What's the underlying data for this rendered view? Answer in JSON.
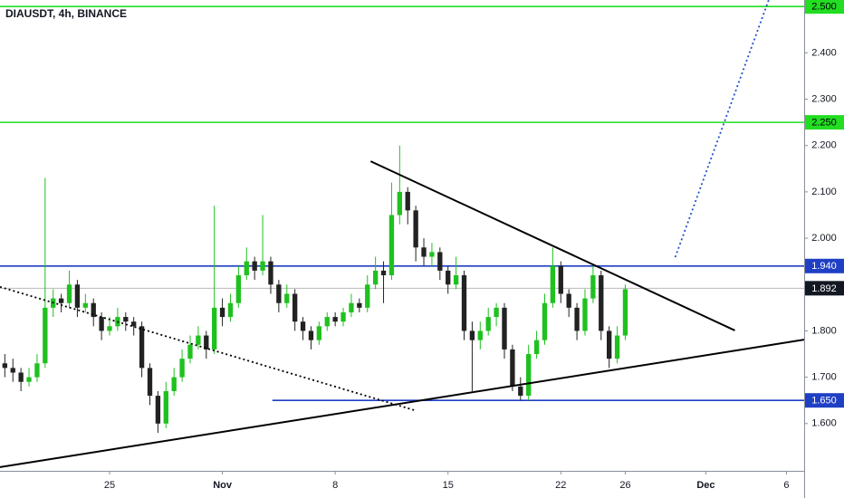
{
  "chart_data": {
    "type": "candlestick",
    "title": "DIAUSDT, 4h, BINANCE",
    "up_color": "#1fc11f",
    "down_color": "#222222",
    "xlim": [
      18.2,
      68.1
    ],
    "ylim": [
      1.498,
      2.514
    ],
    "xticks": [
      25,
      {
        "value": 32,
        "label": "Nov"
      },
      8,
      15,
      22,
      26,
      {
        "value": 62,
        "label": "Dec"
      },
      6
    ],
    "xtick_values": [
      25,
      32,
      39,
      46,
      53,
      57,
      62,
      67
    ],
    "yticks": [
      {
        "value": 1.6,
        "label": "1.600"
      },
      {
        "value": 1.7,
        "label": "1.700"
      },
      {
        "value": 1.8,
        "label": "1.800"
      },
      {
        "value": 2.0,
        "label": "2.000"
      },
      {
        "value": 2.1,
        "label": "2.100"
      },
      {
        "value": 2.2,
        "label": "2.200"
      },
      {
        "value": 2.3,
        "label": "2.300"
      },
      {
        "value": 2.4,
        "label": "2.400"
      }
    ],
    "x": [
      18.5,
      19,
      19.5,
      20,
      20.5,
      21,
      21.5,
      22,
      22.5,
      23,
      23.5,
      24,
      24.5,
      25,
      25.5,
      26,
      26.5,
      27,
      27.5,
      28,
      28.5,
      29,
      29.5,
      30,
      30.5,
      31,
      31.5,
      32,
      32.5,
      33,
      33.5,
      34,
      34.5,
      35,
      35.5,
      36,
      36.5,
      37,
      37.5,
      38,
      38.5,
      39,
      39.5,
      40,
      40.5,
      41,
      41.5,
      42,
      42.5,
      43,
      43.5,
      44,
      44.5,
      45,
      45.5,
      46,
      46.5,
      47,
      47.5,
      48,
      48.5,
      49,
      49.5,
      50,
      50.5,
      51,
      51.5,
      52,
      52.5,
      53,
      53.5,
      54,
      54.5,
      55,
      55.5,
      56,
      56.5,
      57
    ],
    "open": [
      1.73,
      1.72,
      1.71,
      1.69,
      1.7,
      1.73,
      1.85,
      1.87,
      1.86,
      1.9,
      1.85,
      1.86,
      1.83,
      1.8,
      1.81,
      1.83,
      1.82,
      1.81,
      1.72,
      1.66,
      1.6,
      1.67,
      1.7,
      1.74,
      1.77,
      1.79,
      1.76,
      1.85,
      1.83,
      1.86,
      1.92,
      1.95,
      1.93,
      1.95,
      1.9,
      1.86,
      1.88,
      1.82,
      1.8,
      1.78,
      1.81,
      1.83,
      1.82,
      1.84,
      1.86,
      1.85,
      1.9,
      1.93,
      1.92,
      2.05,
      2.1,
      2.06,
      1.98,
      1.96,
      1.97,
      1.93,
      1.9,
      1.92,
      1.8,
      1.78,
      1.8,
      1.83,
      1.85,
      1.76,
      1.68,
      1.66,
      1.75,
      1.78,
      1.86,
      1.94,
      1.88,
      1.85,
      1.8,
      1.87,
      1.92,
      1.8,
      1.74,
      1.79
    ],
    "high": [
      1.75,
      1.74,
      1.72,
      1.72,
      1.75,
      2.13,
      1.89,
      1.88,
      1.93,
      1.91,
      1.88,
      1.87,
      1.84,
      1.83,
      1.85,
      1.84,
      1.83,
      1.82,
      1.73,
      1.67,
      1.69,
      1.72,
      1.76,
      1.79,
      1.81,
      1.8,
      2.07,
      1.87,
      1.88,
      1.94,
      1.98,
      1.96,
      2.05,
      1.96,
      1.91,
      1.9,
      1.89,
      1.83,
      1.81,
      1.82,
      1.84,
      1.84,
      1.85,
      1.88,
      1.87,
      1.92,
      1.96,
      1.95,
      2.12,
      2.2,
      2.11,
      2.07,
      2.0,
      1.99,
      1.98,
      1.94,
      1.96,
      1.93,
      1.82,
      1.82,
      1.85,
      1.86,
      1.86,
      1.77,
      1.7,
      1.77,
      1.8,
      1.88,
      1.98,
      1.95,
      1.89,
      1.86,
      1.89,
      1.94,
      1.93,
      1.81,
      1.81,
      1.9
    ],
    "low": [
      1.7,
      1.69,
      1.67,
      1.68,
      1.69,
      1.72,
      1.83,
      1.84,
      1.85,
      1.83,
      1.84,
      1.81,
      1.78,
      1.79,
      1.8,
      1.8,
      1.79,
      1.7,
      1.64,
      1.58,
      1.59,
      1.66,
      1.69,
      1.73,
      1.76,
      1.74,
      1.75,
      1.81,
      1.82,
      1.85,
      1.91,
      1.91,
      1.92,
      1.88,
      1.84,
      1.85,
      1.8,
      1.78,
      1.76,
      1.77,
      1.8,
      1.81,
      1.81,
      1.83,
      1.84,
      1.84,
      1.89,
      1.86,
      1.91,
      2.03,
      2.03,
      1.95,
      1.94,
      1.94,
      1.91,
      1.88,
      1.89,
      1.78,
      1.67,
      1.76,
      1.79,
      1.81,
      1.74,
      1.67,
      1.65,
      1.65,
      1.74,
      1.77,
      1.85,
      1.86,
      1.83,
      1.78,
      1.79,
      1.86,
      1.78,
      1.72,
      1.73,
      1.78
    ],
    "close": [
      1.72,
      1.71,
      1.69,
      1.7,
      1.73,
      1.85,
      1.87,
      1.86,
      1.9,
      1.85,
      1.86,
      1.83,
      1.8,
      1.81,
      1.83,
      1.82,
      1.81,
      1.72,
      1.66,
      1.6,
      1.67,
      1.7,
      1.74,
      1.77,
      1.79,
      1.76,
      1.85,
      1.83,
      1.86,
      1.92,
      1.95,
      1.93,
      1.95,
      1.9,
      1.86,
      1.88,
      1.82,
      1.8,
      1.78,
      1.81,
      1.83,
      1.82,
      1.84,
      1.86,
      1.85,
      1.9,
      1.93,
      1.92,
      2.05,
      2.1,
      2.06,
      1.98,
      1.96,
      1.97,
      1.93,
      1.9,
      1.92,
      1.8,
      1.78,
      1.8,
      1.83,
      1.85,
      1.76,
      1.68,
      1.66,
      1.75,
      1.78,
      1.86,
      1.94,
      1.88,
      1.85,
      1.8,
      1.87,
      1.92,
      1.8,
      1.74,
      1.79,
      1.89
    ],
    "levels": [
      {
        "value": 2.5,
        "label": "2.500",
        "color": "#22dd22",
        "text_color": "#000000"
      },
      {
        "value": 2.25,
        "label": "2.250",
        "color": "#22dd22",
        "text_color": "#000000"
      },
      {
        "value": 1.94,
        "label": "1.940",
        "color": "#1f3fc4",
        "text_color": "#ffffff"
      },
      {
        "value": 1.65,
        "label": "1.650",
        "color": "#1f3fc4",
        "text_color": "#ffffff",
        "x_from": 35.1
      }
    ],
    "last_price": {
      "value": 1.892,
      "color": "#b8b8b8",
      "label_color": "#131722"
    },
    "drawings": [
      {
        "x": [
          18.2,
          68.1
        ],
        "y": [
          1.506,
          1.781
        ],
        "color": "#000000",
        "dash": "solid"
      },
      {
        "x": [
          41.2,
          63.8
        ],
        "y": [
          2.166,
          1.801
        ],
        "color": "#000000",
        "dash": "solid"
      },
      {
        "x": [
          18.2,
          43.9
        ],
        "y": [
          1.895,
          1.629
        ],
        "color": "#000000",
        "dash": "dotted"
      },
      {
        "x": [
          60.1,
          65.9
        ],
        "y": [
          1.959,
          2.514
        ],
        "color": "#1f4fd0",
        "dash": "dotted"
      }
    ]
  }
}
